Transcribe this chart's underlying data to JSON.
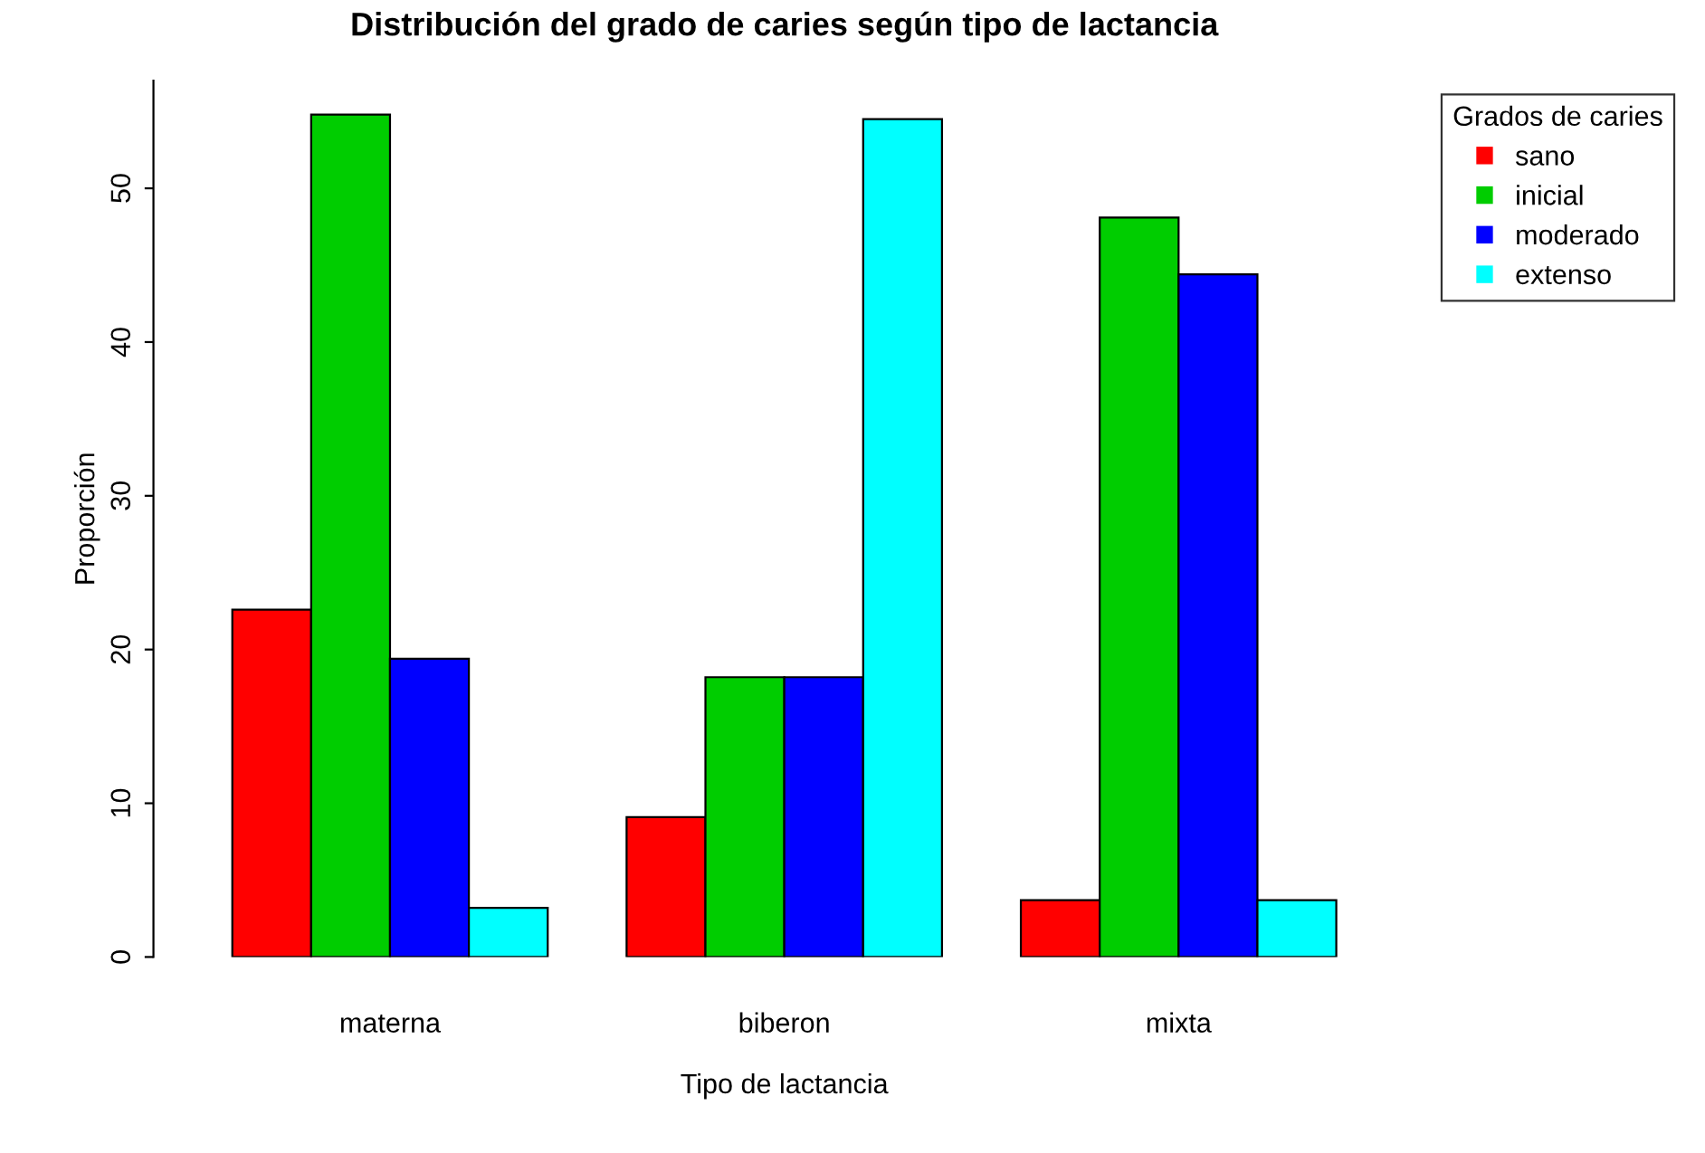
{
  "chart_data": {
    "type": "bar",
    "title": "Distribución del grado de caries según tipo de lactancia",
    "xlabel": "Tipo de lactancia",
    "ylabel": "Proporción",
    "legend_title": "Grados de caries",
    "categories": [
      "materna",
      "biberon",
      "mixta"
    ],
    "series": [
      {
        "name": "sano",
        "color": "#ff0000",
        "values": [
          22.6,
          9.1,
          3.7
        ]
      },
      {
        "name": "inicial",
        "color": "#00cd00",
        "values": [
          54.8,
          18.2,
          48.1
        ]
      },
      {
        "name": "moderado",
        "color": "#0000ff",
        "values": [
          19.4,
          18.2,
          44.4
        ]
      },
      {
        "name": "extenso",
        "color": "#00ffff",
        "values": [
          3.2,
          54.5,
          3.7
        ]
      }
    ],
    "ylim": [
      0,
      57
    ],
    "yticks": [
      0,
      10,
      20,
      30,
      40,
      50
    ],
    "grid": false,
    "legend": "right"
  }
}
